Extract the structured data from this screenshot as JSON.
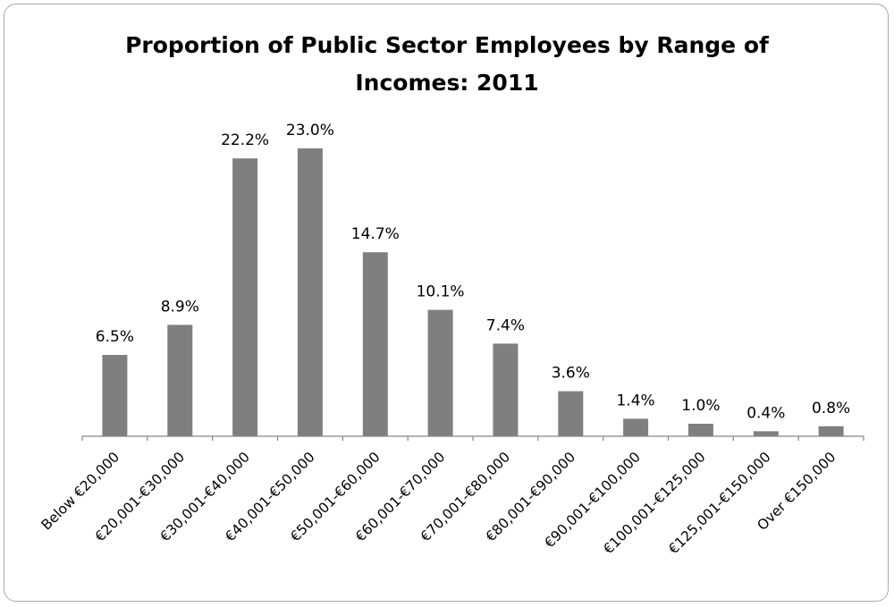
{
  "chart_data": {
    "type": "bar",
    "title_line1": "Proportion of Public Sector Employees by Range of",
    "title_line2": "Incomes: 2011",
    "categories": [
      "Below €20,000",
      "€20,001-€30,000",
      "€30,001-€40,000",
      "€40,001-€50,000",
      "€50,001-€60,000",
      "€60,001-€70,000",
      "€70,001-€80,000",
      "€80,001-€90,000",
      "€90,001-€100,000",
      "€100,001-€125,000",
      "€125,001-€150,000",
      "Over €150,000"
    ],
    "values": [
      6.5,
      8.9,
      22.2,
      23.0,
      14.7,
      10.1,
      7.4,
      3.6,
      1.4,
      1.0,
      0.4,
      0.8
    ],
    "value_labels": [
      "6.5%",
      "8.9%",
      "22.2%",
      "23.0%",
      "14.7%",
      "10.1%",
      "7.4%",
      "3.6%",
      "1.4%",
      "1.0%",
      "0.4%",
      "0.8%"
    ],
    "ylim": [
      0,
      23.0
    ],
    "grid": false,
    "legend": false,
    "bar_color": "#7f7f7f"
  }
}
